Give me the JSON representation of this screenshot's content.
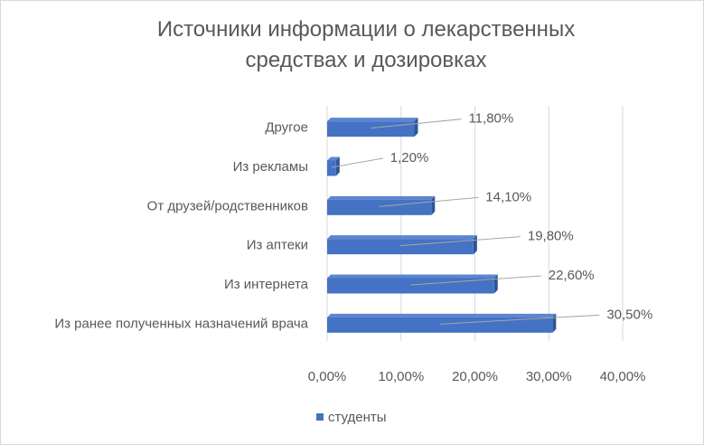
{
  "chart_data": {
    "type": "bar",
    "orientation": "horizontal",
    "title": "Источники информации о лекарственных средствах и дозировках",
    "categories": [
      "Из ранее полученных назначений врача",
      "Из интернета",
      "Из аптеки",
      "От друзей/родственников",
      "Из рекламы",
      "Другое"
    ],
    "series": [
      {
        "name": "студенты",
        "values": [
          30.5,
          22.6,
          19.8,
          14.1,
          1.2,
          11.8
        ],
        "value_labels": [
          "30,50%",
          "22,60%",
          "19,80%",
          "14,10%",
          "1,20%",
          "11,80%"
        ]
      }
    ],
    "xlim": [
      0,
      40
    ],
    "x_ticks": [
      "0,00%",
      "10,00%",
      "20,00%",
      "30,00%",
      "40,00%"
    ],
    "grid": true,
    "legend_position": "bottom",
    "colors": {
      "bar": "#4472c4",
      "bar_side": "#2f5597",
      "grid": "#d9d9d9",
      "text": "#595959",
      "leader": "#a6a6a6"
    }
  }
}
